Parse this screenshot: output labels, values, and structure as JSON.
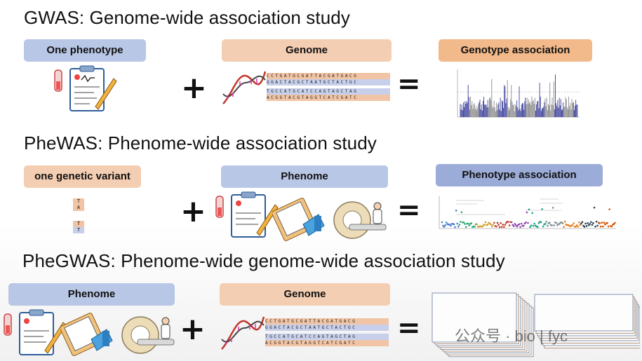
{
  "sections": {
    "gwas": {
      "title": "GWAS: Genome-wide association study",
      "input1": "One phenotype",
      "input2": "Genome",
      "result": "Genotype association"
    },
    "phewas": {
      "title": "PheWAS: Phenome-wide association study",
      "input1": "one genetic variant",
      "input2": "Phenome",
      "result": "Phenotype association"
    },
    "phegwas": {
      "title": "PheGWAS: Phenome-wide genome-wide association study",
      "input1": "Phenome",
      "input2": "Genome"
    }
  },
  "operators": {
    "plus": "+",
    "equals": "="
  },
  "dna_sequence": {
    "row1": "CCTGATGCGATTACGATGACG",
    "row2": "GGACTACGCTAATGCTACTGC",
    "row3": "TGCCATGCATCCAGTAGCTAG",
    "row4": "ACGGTACGTAGGTCATCGATC"
  },
  "variant_letters": {
    "a": "T",
    "b": "A",
    "c": "T",
    "d": "T"
  },
  "icons": [
    "clipboard-icon",
    "dna-helix-icon",
    "manhattan-plot-icon",
    "mri-scanner-icon",
    "phewas-plot-icon",
    "stacked-manhattan-plots-icon"
  ],
  "watermark": "公众号 · bio | fyc",
  "colors": {
    "blue": "#b9c7e6",
    "peach": "#f4ceb3",
    "orange": "#f2b98a",
    "darkblue": "#9cacd8"
  }
}
